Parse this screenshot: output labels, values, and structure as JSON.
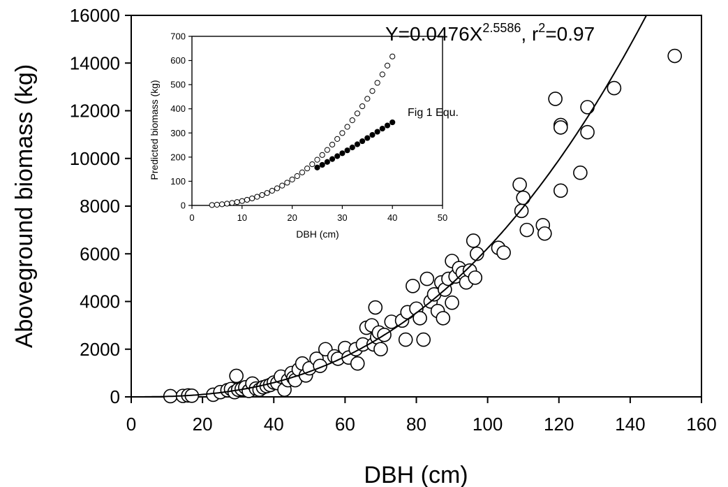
{
  "chart_data": [
    {
      "type": "scatter",
      "title": "",
      "xlabel": "DBH (cm)",
      "ylabel": "Aboveground biomass (kg)",
      "xlim": [
        0,
        160
      ],
      "ylim": [
        0,
        16000
      ],
      "xticks": [
        0,
        20,
        40,
        60,
        80,
        100,
        120,
        140,
        160
      ],
      "yticks": [
        0,
        2000,
        4000,
        6000,
        8000,
        10000,
        12000,
        14000,
        16000
      ],
      "equation": {
        "prefix": "Y=0.0476X",
        "exponent": "2.5586",
        "sep": ", r",
        "r_sup": "2",
        "suffix": "=0.97"
      },
      "fit": {
        "a": 0.0476,
        "b": 2.5586
      },
      "points": [
        [
          11,
          30
        ],
        [
          14.5,
          40
        ],
        [
          16,
          60
        ],
        [
          17,
          50
        ],
        [
          23,
          90
        ],
        [
          25,
          200
        ],
        [
          27,
          280
        ],
        [
          28,
          330
        ],
        [
          29,
          200
        ],
        [
          30,
          300
        ],
        [
          29.5,
          880
        ],
        [
          31,
          330
        ],
        [
          32,
          400
        ],
        [
          33,
          250
        ],
        [
          34,
          560
        ],
        [
          35,
          350
        ],
        [
          36,
          300
        ],
        [
          37,
          400
        ],
        [
          38,
          450
        ],
        [
          39,
          500
        ],
        [
          40,
          600
        ],
        [
          41,
          580
        ],
        [
          42,
          850
        ],
        [
          43,
          300
        ],
        [
          44,
          700
        ],
        [
          45,
          1000
        ],
        [
          45.5,
          800
        ],
        [
          46,
          700
        ],
        [
          47,
          1150
        ],
        [
          48,
          1400
        ],
        [
          49,
          900
        ],
        [
          50,
          1200
        ],
        [
          52,
          1600
        ],
        [
          53,
          1300
        ],
        [
          54.5,
          2000
        ],
        [
          57,
          1700
        ],
        [
          58,
          1600
        ],
        [
          60,
          2050
        ],
        [
          61,
          1650
        ],
        [
          63,
          2000
        ],
        [
          63.5,
          1400
        ],
        [
          65,
          2200
        ],
        [
          66,
          2900
        ],
        [
          67.5,
          3000
        ],
        [
          68,
          2200
        ],
        [
          68.5,
          3750
        ],
        [
          69,
          2500
        ],
        [
          69.5,
          2700
        ],
        [
          70,
          2000
        ],
        [
          71,
          2600
        ],
        [
          73,
          3150
        ],
        [
          76,
          3200
        ],
        [
          77,
          2400
        ],
        [
          77.5,
          3550
        ],
        [
          79,
          4650
        ],
        [
          80,
          3700
        ],
        [
          81,
          3300
        ],
        [
          82,
          2400
        ],
        [
          83,
          4950
        ],
        [
          84,
          4000
        ],
        [
          85,
          4300
        ],
        [
          86,
          3600
        ],
        [
          87,
          4800
        ],
        [
          87.5,
          3300
        ],
        [
          88,
          4500
        ],
        [
          89,
          4950
        ],
        [
          90,
          5700
        ],
        [
          90,
          3950
        ],
        [
          91,
          5050
        ],
        [
          92,
          5400
        ],
        [
          93,
          5200
        ],
        [
          94,
          4800
        ],
        [
          95,
          5300
        ],
        [
          96,
          6550
        ],
        [
          96.5,
          5000
        ],
        [
          97,
          6000
        ],
        [
          103,
          6250
        ],
        [
          104.5,
          6050
        ],
        [
          109,
          8900
        ],
        [
          109.5,
          7800
        ],
        [
          110,
          8350
        ],
        [
          111,
          7000
        ],
        [
          115.5,
          7200
        ],
        [
          116,
          6850
        ],
        [
          119,
          12500
        ],
        [
          120.5,
          11400
        ],
        [
          120.5,
          11300
        ],
        [
          120.5,
          8650
        ],
        [
          126,
          9400
        ],
        [
          128,
          12150
        ],
        [
          128,
          11100
        ],
        [
          135.5,
          12950
        ],
        [
          152.5,
          14300
        ]
      ]
    },
    {
      "type": "scatter",
      "title": "",
      "xlabel": "DBH (cm)",
      "ylabel": "Predicted biomass (kg)",
      "xlim": [
        0,
        50
      ],
      "ylim": [
        0,
        700
      ],
      "xticks": [
        0,
        10,
        20,
        30,
        40,
        50
      ],
      "yticks": [
        0,
        100,
        200,
        300,
        400,
        500,
        600,
        700
      ],
      "annotation": "Fig 1 Equ.",
      "series": [
        {
          "marker": "open",
          "x": [
            4,
            5,
            6,
            7,
            8,
            9,
            10,
            11,
            12,
            13,
            14,
            15,
            16,
            17,
            18,
            19,
            20,
            21,
            22,
            23,
            24,
            25,
            26,
            27,
            28,
            29,
            30,
            31,
            32,
            33,
            34,
            35,
            36,
            37,
            38,
            39,
            40
          ],
          "y": [
            1.6,
            2.9,
            4.8,
            7.2,
            10.2,
            13.9,
            18.2,
            23.3,
            29.1,
            35.7,
            43.2,
            51.5,
            60.7,
            70.9,
            82.0,
            94.2,
            107.3,
            121.5,
            136.7,
            153.1,
            170.5,
            189.1,
            208.8,
            229.7,
            251.8,
            275.1,
            299.6,
            325.4,
            352.5,
            380.8,
            410.5,
            441.4,
            473.7,
            507.4,
            542.4,
            578.8,
            616.6
          ]
        },
        {
          "marker": "filled",
          "x": [
            25,
            26,
            27,
            28,
            29,
            30,
            31,
            32,
            33,
            34,
            35,
            36,
            37,
            38,
            39,
            40
          ],
          "y": [
            157,
            168,
            180,
            192,
            204,
            216,
            228,
            240,
            253,
            266,
            279,
            292,
            305,
            318,
            331,
            344
          ]
        }
      ]
    }
  ]
}
